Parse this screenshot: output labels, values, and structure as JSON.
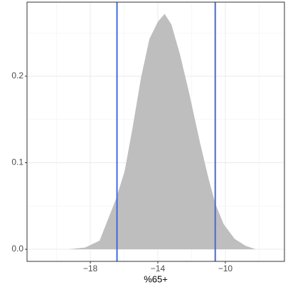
{
  "chart_data": {
    "type": "density",
    "x_label": "%65+",
    "x": [
      -19.3,
      -18.3,
      -17.45,
      -16.48,
      -15.97,
      -15.5,
      -15.0,
      -14.5,
      -14.0,
      -13.6,
      -13.2,
      -12.7,
      -12.15,
      -11.5,
      -11.0,
      -10.6,
      -10.1,
      -9.45,
      -8.8,
      -8.2
    ],
    "values": [
      0,
      0.002,
      0.01,
      0.058,
      0.09,
      0.14,
      0.198,
      0.243,
      0.263,
      0.272,
      0.26,
      0.226,
      0.181,
      0.123,
      0.082,
      0.053,
      0.029,
      0.012,
      0.004,
      0
    ],
    "color": "#bebebe",
    "vlines": [
      -16.42,
      -10.6
    ],
    "vline_color": "#4169e1",
    "xlim": [
      -21.75,
      -6.5
    ],
    "ylim": [
      -0.014,
      0.2856
    ],
    "xticks": [
      {
        "value": -18,
        "label": "−18"
      },
      {
        "value": -14,
        "label": "−14"
      },
      {
        "value": -10,
        "label": "−10"
      }
    ],
    "yticks": [
      {
        "value": 0,
        "label": "0.0"
      },
      0.1,
      0.2
    ],
    "x_minor_ticks": [
      -20,
      -16,
      -12,
      -8
    ],
    "y_minor_ticks": [
      0.05,
      0.15,
      0.25
    ],
    "grid": true
  }
}
